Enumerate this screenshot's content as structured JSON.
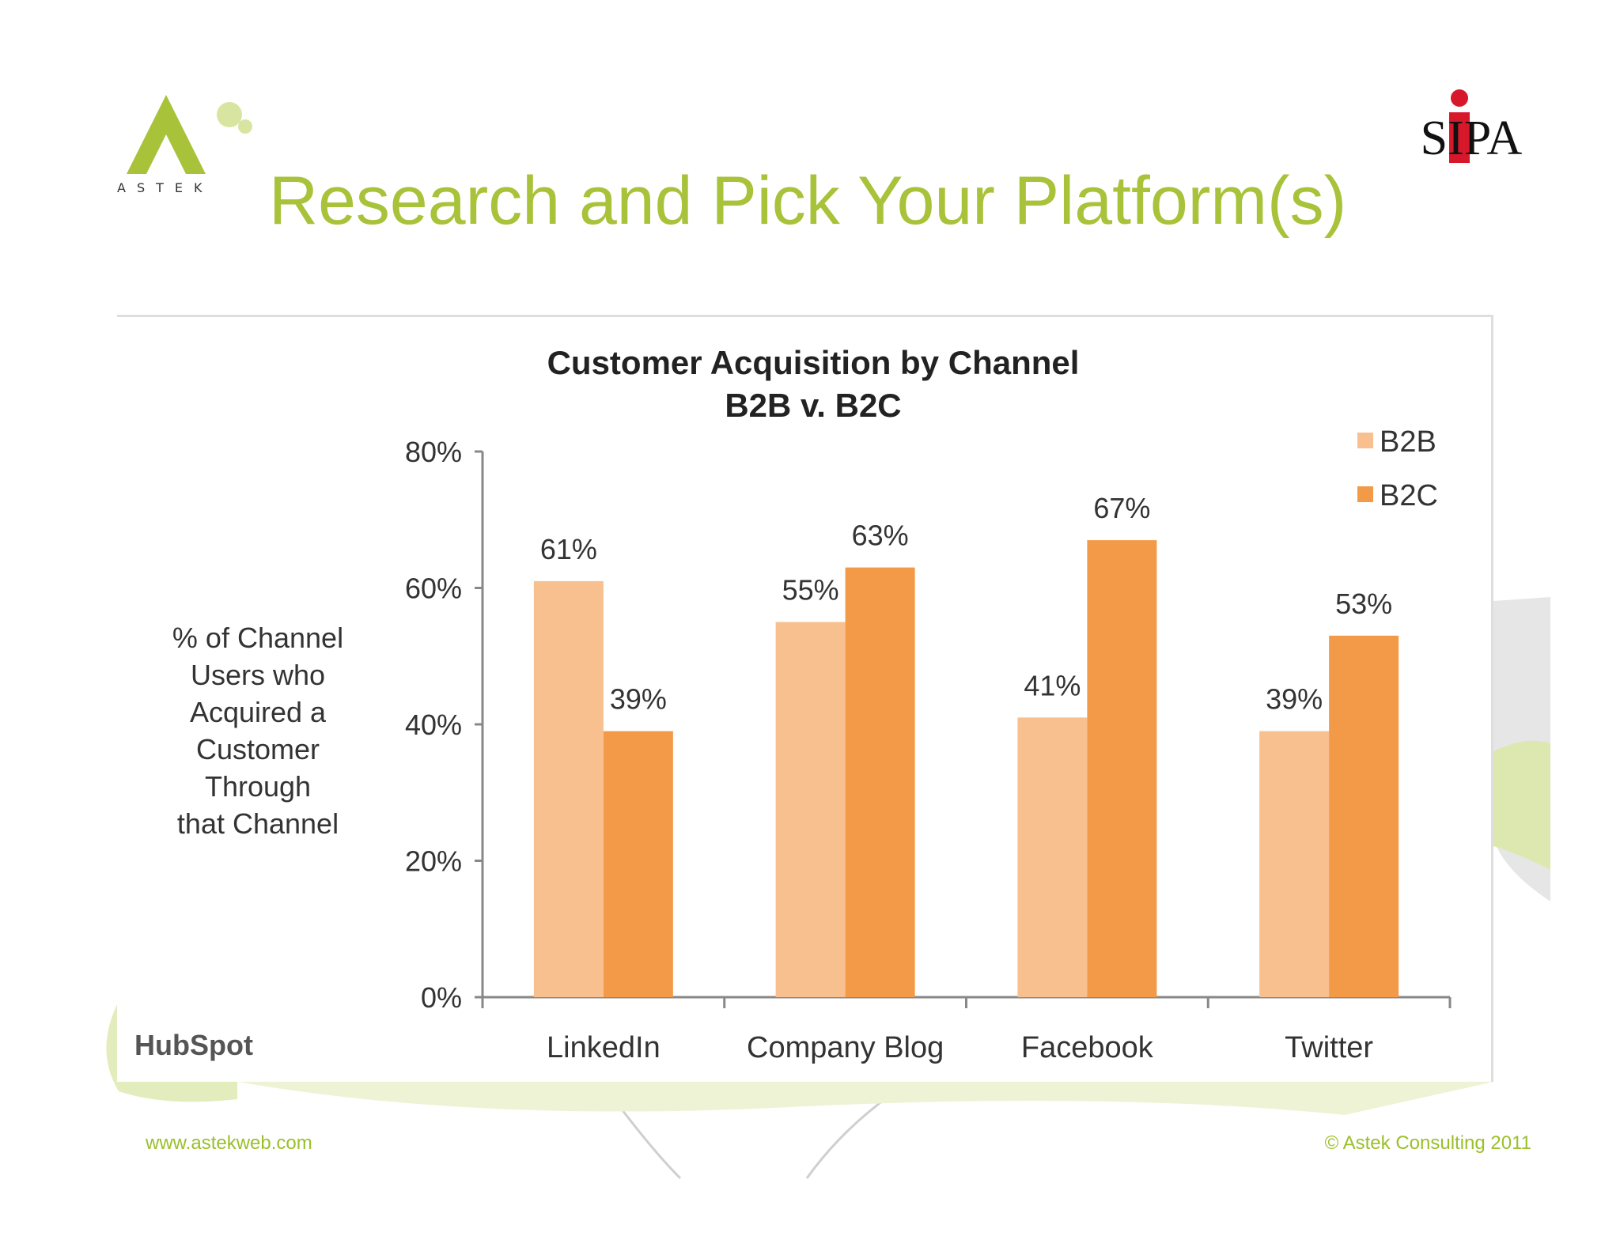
{
  "slide": {
    "title": "Research and Pick Your Platform(s)",
    "logo_left_text": "ASTEK",
    "logo_right_text": "SIPA",
    "source_logo": "HubSpot",
    "footer_left": "www.astekweb.com",
    "footer_right": "© Astek Consulting 2011",
    "accent_color": "#a8c23a"
  },
  "chart_data": {
    "type": "bar",
    "title": "Customer Acquisition by Channel",
    "subtitle": "B2B v. B2C",
    "categories": [
      "LinkedIn",
      "Company Blog",
      "Facebook",
      "Twitter"
    ],
    "series": [
      {
        "name": "B2B",
        "values": [
          61,
          55,
          41,
          39
        ],
        "color": "#f8c08f"
      },
      {
        "name": "B2C",
        "values": [
          39,
          63,
          67,
          53
        ],
        "color": "#f39a48"
      }
    ],
    "data_labels": [
      [
        "61%",
        "55%",
        "41%",
        "39%"
      ],
      [
        "39%",
        "63%",
        "67%",
        "53%"
      ]
    ],
    "ylabel": "% of Channel Users who Acquired a Customer Through that Channel",
    "ylabel_lines": [
      "% of Channel",
      "Users who",
      "Acquired a",
      "Customer",
      "Through",
      "that Channel"
    ],
    "ylim": [
      0,
      80
    ],
    "yticks": [
      0,
      20,
      40,
      60,
      80
    ],
    "ytick_labels": [
      "0%",
      "20%",
      "40%",
      "60%",
      "80%"
    ],
    "grid": false,
    "legend": "top-right"
  }
}
